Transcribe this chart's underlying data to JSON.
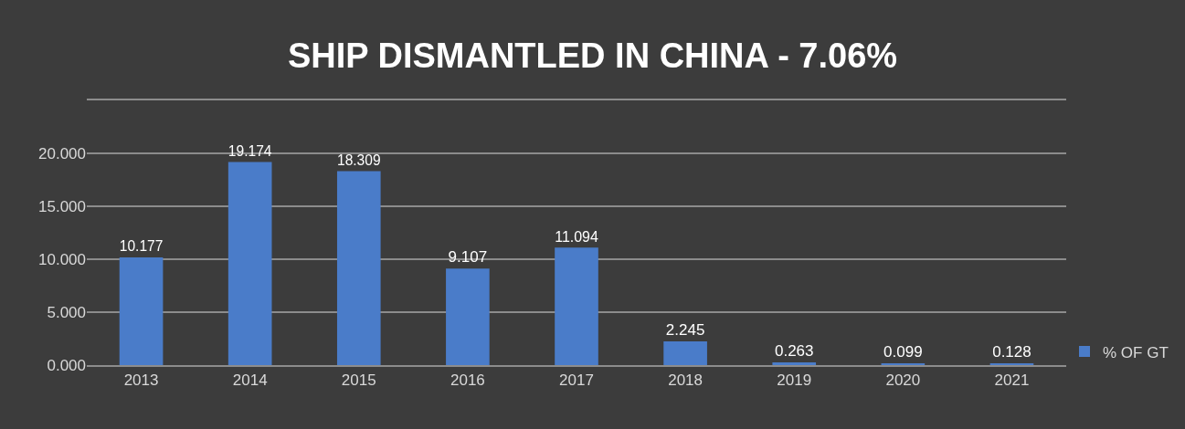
{
  "chart_data": {
    "type": "bar",
    "title": "SHIP DISMANTLED IN CHINA - 7.06%",
    "categories": [
      "2013",
      "2014",
      "2015",
      "2016",
      "2017",
      "2018",
      "2019",
      "2020",
      "2021"
    ],
    "series": [
      {
        "name": "% OF GT",
        "color": "#4a7cc9",
        "values": [
          10.177,
          19.174,
          18.309,
          9.107,
          11.094,
          2.245,
          0.263,
          0.099,
          0.128
        ]
      }
    ],
    "ylim": [
      0,
      25
    ],
    "yticks": [
      {
        "value": 0,
        "label": "0.000"
      },
      {
        "value": 5,
        "label": "5.000"
      },
      {
        "value": 10,
        "label": "10.000"
      },
      {
        "value": 15,
        "label": "15.000"
      },
      {
        "value": 20,
        "label": "20.000"
      },
      {
        "value": 25,
        "label": null
      }
    ],
    "grid": "y",
    "legend": "right",
    "data_labels": true
  }
}
